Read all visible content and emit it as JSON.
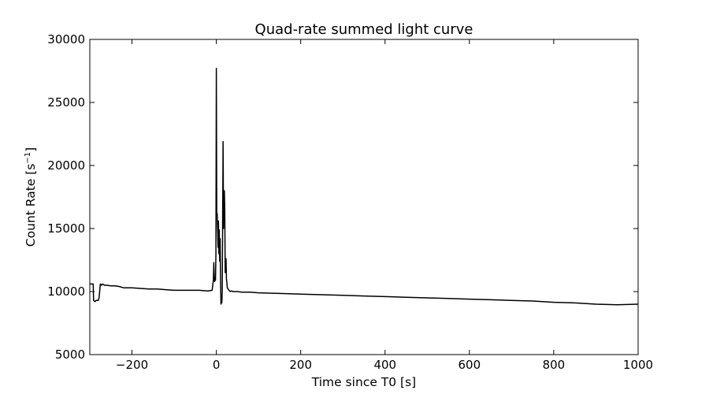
{
  "chart_data": {
    "type": "line",
    "title": "Quad-rate summed light curve",
    "xlabel": "Time since T0 [s]",
    "ylabel_main": "Count Rate [s",
    "ylabel_sup": "−1",
    "ylabel_end": "]",
    "xlim": [
      -300,
      1000
    ],
    "ylim": [
      5000,
      30000
    ],
    "xticks": [
      -200,
      0,
      200,
      400,
      600,
      800,
      1000
    ],
    "xtick_labels": [
      "−200",
      "0",
      "200",
      "400",
      "600",
      "800",
      "1000"
    ],
    "yticks": [
      5000,
      10000,
      15000,
      20000,
      25000,
      30000
    ],
    "ytick_labels": [
      "5000",
      "10000",
      "15000",
      "20000",
      "25000",
      "30000"
    ],
    "grid": false,
    "series": [
      {
        "color": "#000000",
        "x": [
          -300,
          -292,
          -291,
          -288,
          -285,
          -280,
          -278,
          -275,
          -272,
          -270,
          -265,
          -260,
          -250,
          -240,
          -230,
          -220,
          -200,
          -180,
          -160,
          -140,
          -120,
          -100,
          -80,
          -60,
          -40,
          -20,
          -10,
          -7,
          -6,
          -5,
          -4,
          -3,
          -2,
          -1,
          0,
          1,
          2,
          3,
          4,
          5,
          6,
          7,
          8,
          9,
          10,
          11,
          12,
          13,
          14,
          15,
          16,
          17,
          18,
          19,
          20,
          21,
          22,
          23,
          24,
          25,
          26,
          28,
          30,
          33,
          36,
          40,
          45,
          50,
          60,
          80,
          100,
          150,
          200,
          250,
          300,
          350,
          400,
          450,
          500,
          550,
          600,
          650,
          700,
          750,
          800,
          850,
          900,
          950,
          1000
        ],
        "y": [
          10600,
          10600,
          9300,
          9200,
          9300,
          9300,
          9500,
          10600,
          10500,
          10600,
          10500,
          10500,
          10450,
          10450,
          10400,
          10300,
          10300,
          10250,
          10200,
          10200,
          10150,
          10100,
          10100,
          10100,
          10100,
          10050,
          10100,
          10900,
          12300,
          11200,
          10800,
          11000,
          10900,
          13000,
          27700,
          16000,
          16200,
          15000,
          13500,
          15600,
          13000,
          14900,
          12400,
          14200,
          11000,
          9000,
          9200,
          9100,
          10000,
          16000,
          21900,
          15000,
          17000,
          18000,
          16500,
          11500,
          12600,
          12600,
          11000,
          10700,
          10300,
          10200,
          10100,
          10000,
          10050,
          10000,
          10000,
          10000,
          9950,
          9950,
          9900,
          9850,
          9800,
          9750,
          9700,
          9650,
          9600,
          9550,
          9500,
          9450,
          9400,
          9350,
          9300,
          9250,
          9150,
          9100,
          9000,
          8950,
          9000
        ]
      }
    ]
  }
}
